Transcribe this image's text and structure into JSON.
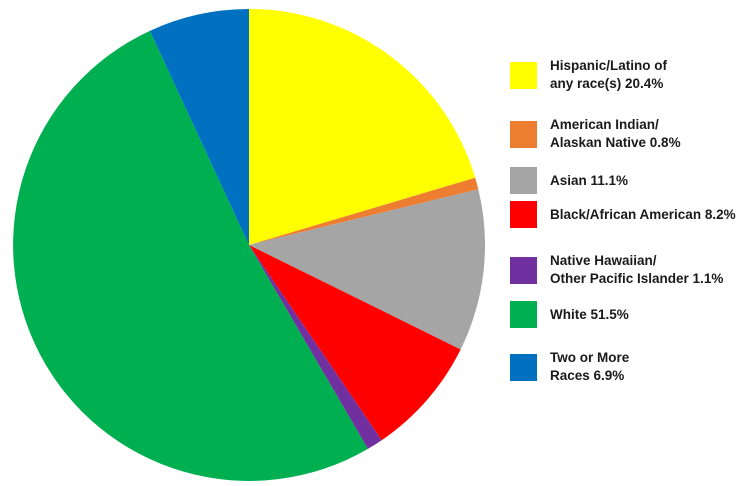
{
  "chart_data": {
    "type": "pie",
    "title": "",
    "slices": [
      {
        "label": "Hispanic/Latino of\nany race(s) 20.4%",
        "value": 20.4,
        "color": "#ffff00"
      },
      {
        "label": "American Indian/\nAlaskan Native 0.8%",
        "value": 0.8,
        "color": "#ed7d31"
      },
      {
        "label": "Asian 11.1%",
        "value": 11.1,
        "color": "#a5a5a5"
      },
      {
        "label": "Black/African American 8.2%",
        "value": 8.2,
        "color": "#ff0000"
      },
      {
        "label": "Native Hawaiian/\nOther Pacific Islander 1.1%",
        "value": 1.1,
        "color": "#7030a0"
      },
      {
        "label": "White 51.5%",
        "value": 51.5,
        "color": "#00b050"
      },
      {
        "label": "Two or More\nRaces 6.9%",
        "value": 6.9,
        "color": "#0070c0"
      }
    ],
    "start": "12 o'clock",
    "direction": "clockwise",
    "legend_position": "right"
  }
}
